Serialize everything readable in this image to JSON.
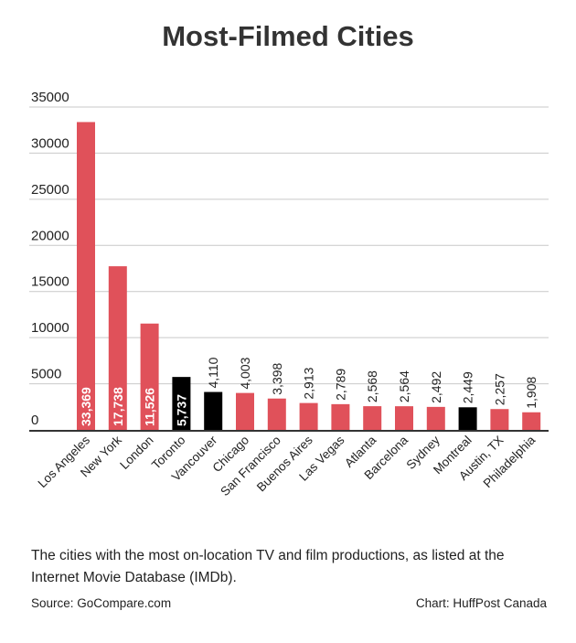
{
  "colors": {
    "highlight": "#000000",
    "default": "#e0515a",
    "gridline": "#c9c9c9",
    "axis": "#333333",
    "title": "#333333"
  },
  "chart_data": {
    "type": "bar",
    "title": "Most-Filmed Cities",
    "xlabel": "",
    "ylabel": "",
    "ylim": [
      0,
      35000
    ],
    "yticks": [
      0,
      5000,
      10000,
      15000,
      20000,
      25000,
      30000,
      35000
    ],
    "ytick_labels": [
      "0",
      "5000",
      "10000",
      "15000",
      "20000",
      "25000",
      "30000",
      "35000"
    ],
    "grid": true,
    "categories": [
      "Los Angeles",
      "New York",
      "London",
      "Toronto",
      "Vancouver",
      "Chicago",
      "San Francisco",
      "Buenos Aires",
      "Las Vegas",
      "Atlanta",
      "Barcelona",
      "Sydney",
      "Montreal",
      "Austin, TX",
      "Philadelphia"
    ],
    "values": [
      33369,
      17738,
      11526,
      5737,
      4110,
      4003,
      3398,
      2913,
      2789,
      2568,
      2564,
      2492,
      2449,
      2257,
      1908
    ],
    "value_labels": [
      "33,369",
      "17,738",
      "11,526",
      "5,737",
      "4,110",
      "4,003",
      "3,398",
      "2,913",
      "2,789",
      "2,568",
      "2,564",
      "2,492",
      "2,449",
      "2,257",
      "1,908"
    ],
    "highlighted": [
      false,
      false,
      false,
      true,
      true,
      false,
      false,
      false,
      false,
      false,
      false,
      false,
      true,
      false,
      false
    ]
  },
  "caption": "The cities with the most on-location TV and film productions, as listed at the Internet Movie Database (IMDb).",
  "source": "Source: GoCompare.com",
  "credit": "Chart: HuffPost Canada"
}
